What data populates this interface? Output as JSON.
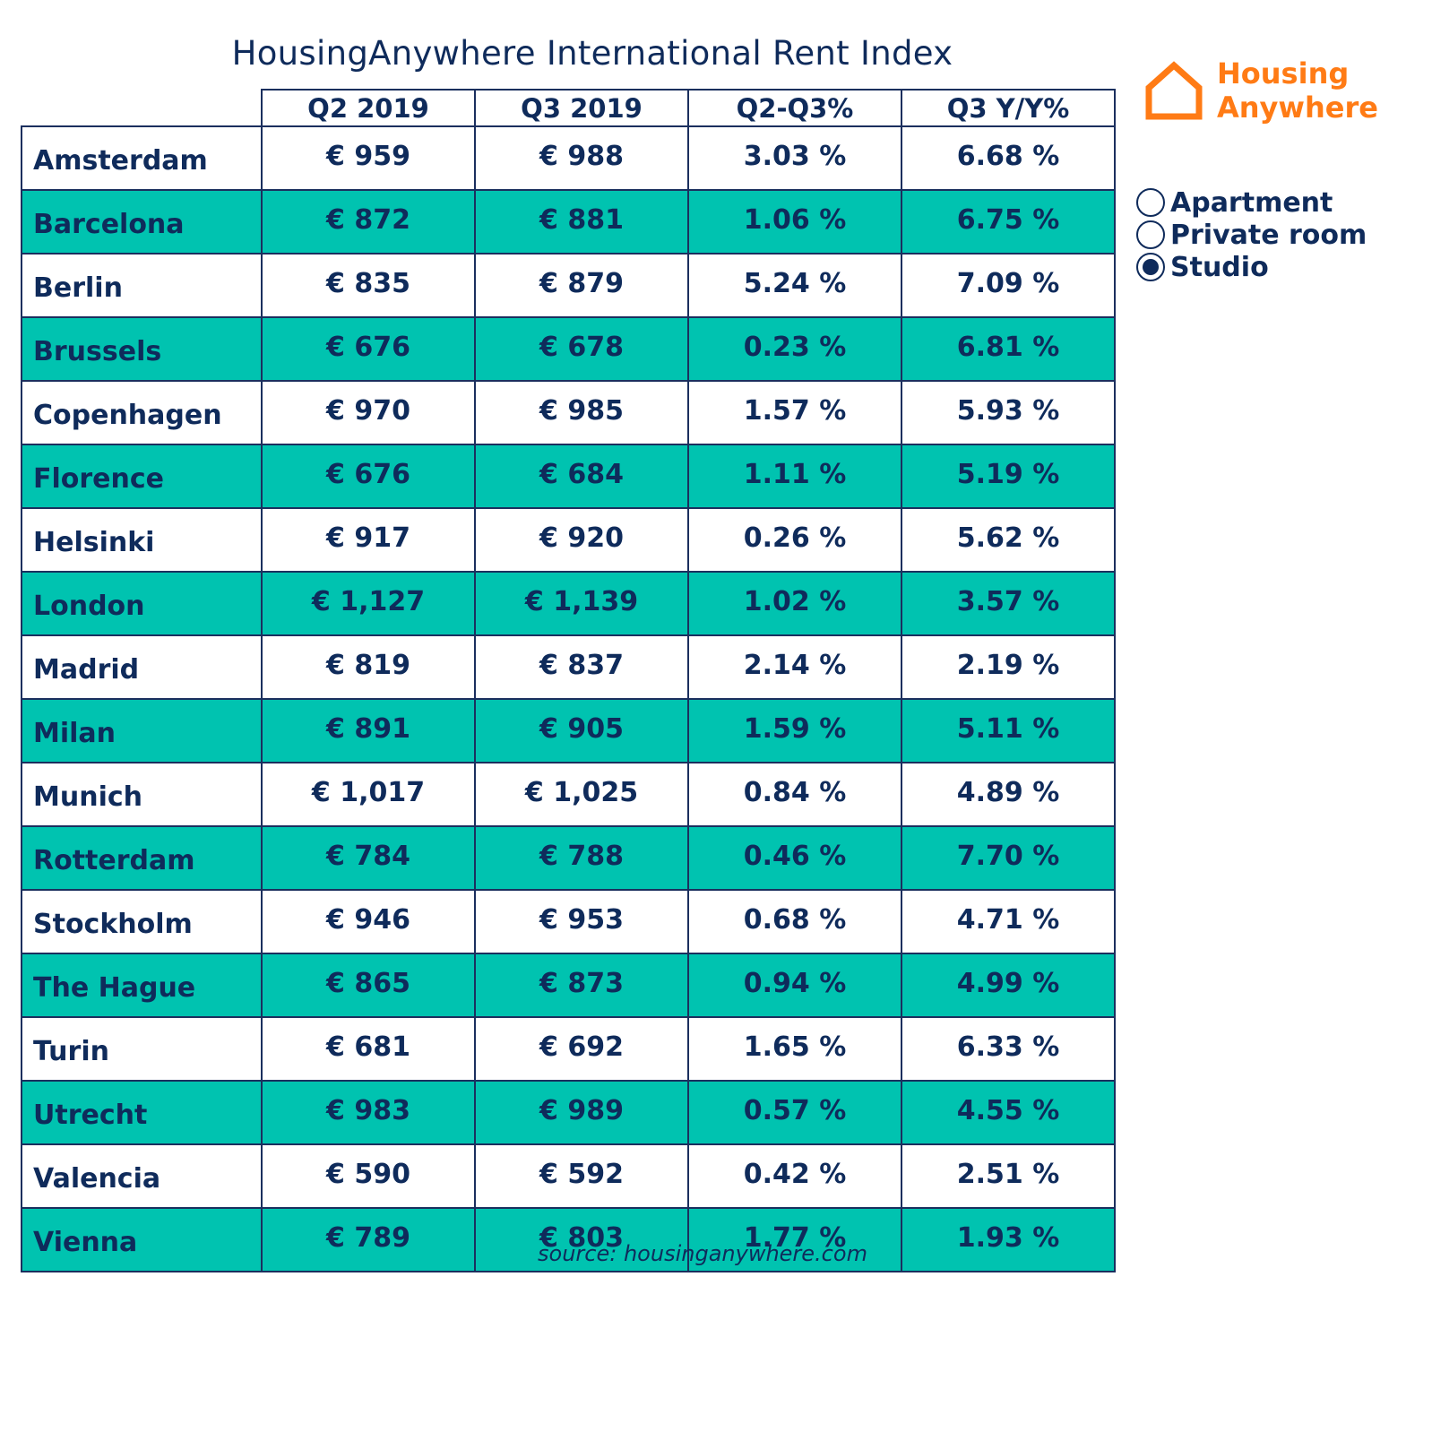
{
  "chart_data": {
    "type": "table",
    "title": "HousingAnywhere International Rent Index",
    "columns": [
      "",
      "Q2 2019",
      "Q3 2019",
      "Q2-Q3%",
      "Q3 Y/Y%"
    ],
    "rows": [
      {
        "city": "Amsterdam",
        "q2": "€ 959",
        "q3": "€ 988",
        "qoq": "3.03 %",
        "yoy": "6.68 %"
      },
      {
        "city": "Barcelona",
        "q2": "€ 872",
        "q3": "€ 881",
        "qoq": "1.06 %",
        "yoy": "6.75 %"
      },
      {
        "city": "Berlin",
        "q2": "€ 835",
        "q3": "€ 879",
        "qoq": "5.24 %",
        "yoy": "7.09 %"
      },
      {
        "city": "Brussels",
        "q2": "€ 676",
        "q3": "€ 678",
        "qoq": "0.23 %",
        "yoy": "6.81 %"
      },
      {
        "city": "Copenhagen",
        "q2": "€ 970",
        "q3": "€ 985",
        "qoq": "1.57 %",
        "yoy": "5.93 %"
      },
      {
        "city": "Florence",
        "q2": "€ 676",
        "q3": "€ 684",
        "qoq": "1.11 %",
        "yoy": "5.19 %"
      },
      {
        "city": "Helsinki",
        "q2": "€ 917",
        "q3": "€ 920",
        "qoq": "0.26 %",
        "yoy": "5.62 %"
      },
      {
        "city": "London",
        "q2": "€ 1,127",
        "q3": "€ 1,139",
        "qoq": "1.02 %",
        "yoy": "3.57 %"
      },
      {
        "city": "Madrid",
        "q2": "€ 819",
        "q3": "€ 837",
        "qoq": "2.14 %",
        "yoy": "2.19 %"
      },
      {
        "city": "Milan",
        "q2": "€ 891",
        "q3": "€ 905",
        "qoq": "1.59 %",
        "yoy": "5.11 %"
      },
      {
        "city": "Munich",
        "q2": "€ 1,017",
        "q3": "€ 1,025",
        "qoq": "0.84 %",
        "yoy": "4.89 %"
      },
      {
        "city": "Rotterdam",
        "q2": "€ 784",
        "q3": "€ 788",
        "qoq": "0.46 %",
        "yoy": "7.70 %"
      },
      {
        "city": "Stockholm",
        "q2": "€ 946",
        "q3": "€ 953",
        "qoq": "0.68 %",
        "yoy": "4.71 %"
      },
      {
        "city": "The Hague",
        "q2": "€ 865",
        "q3": "€ 873",
        "qoq": "0.94 %",
        "yoy": "4.99 %"
      },
      {
        "city": "Turin",
        "q2": "€ 681",
        "q3": "€ 692",
        "qoq": "1.65 %",
        "yoy": "6.33 %"
      },
      {
        "city": "Utrecht",
        "q2": "€ 983",
        "q3": "€ 989",
        "qoq": "0.57 %",
        "yoy": "4.55 %"
      },
      {
        "city": "Valencia",
        "q2": "€ 590",
        "q3": "€ 592",
        "qoq": "0.42 %",
        "yoy": "2.51 %"
      },
      {
        "city": "Vienna",
        "q2": "€ 789",
        "q3": "€ 803",
        "qoq": "1.77 %",
        "yoy": "1.93 %"
      }
    ],
    "legend": {
      "placement": "right",
      "options": [
        {
          "label": "Apartment",
          "selected": false
        },
        {
          "label": "Private room",
          "selected": false
        },
        {
          "label": "Studio",
          "selected": true
        }
      ]
    },
    "source": "source:  housinganywhere.com"
  },
  "logo": {
    "line1": "Housing",
    "line2": "Anywhere",
    "icon": "house-outline-icon"
  },
  "colors": {
    "text": "#0f2b5b",
    "alt_row": "#00c3b0",
    "brand": "#ff7b15",
    "border": "#1b2f5e"
  }
}
